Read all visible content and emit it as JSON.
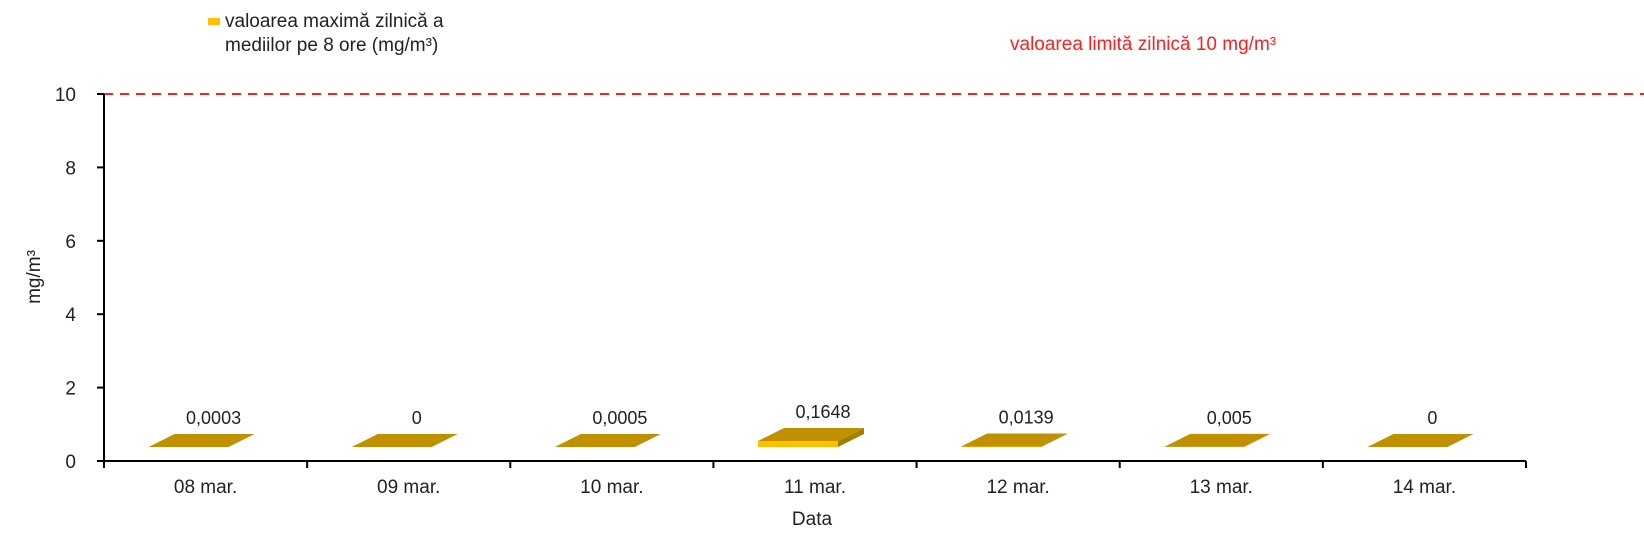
{
  "chart_data": {
    "type": "bar",
    "categories": [
      "08 mar.",
      "09 mar.",
      "10 mar.",
      "11 mar.",
      "12 mar.",
      "13 mar.",
      "14 mar."
    ],
    "series": [
      {
        "name": "valoarea maximă zilnică a mediilor pe 8 ore (mg/m³)",
        "legend_lines": [
          "valoarea maximă zilnică a",
          "mediilor pe 8 ore (mg/m³)"
        ],
        "values": [
          0.0003,
          0,
          0.0005,
          0.1648,
          0.0139,
          0.005,
          0
        ],
        "labels": [
          "0,0003",
          "0",
          "0,0005",
          "0,1648",
          "0,0139",
          "0,005",
          "0"
        ],
        "color": "#ffc000",
        "side_color": "#a08000",
        "top_color": "#c09000"
      }
    ],
    "limit": {
      "value": 10,
      "label": "valoarea limită zilnică 10 mg/m³",
      "color": "#ff1f1f",
      "style": "dashed"
    },
    "ylim": [
      0,
      10
    ],
    "yticks": [
      "0",
      "2",
      "4",
      "6",
      "8",
      "10"
    ],
    "xlabel": "Data",
    "ylabel": "mg/m³",
    "grid": false,
    "legend_position": "top-left"
  }
}
